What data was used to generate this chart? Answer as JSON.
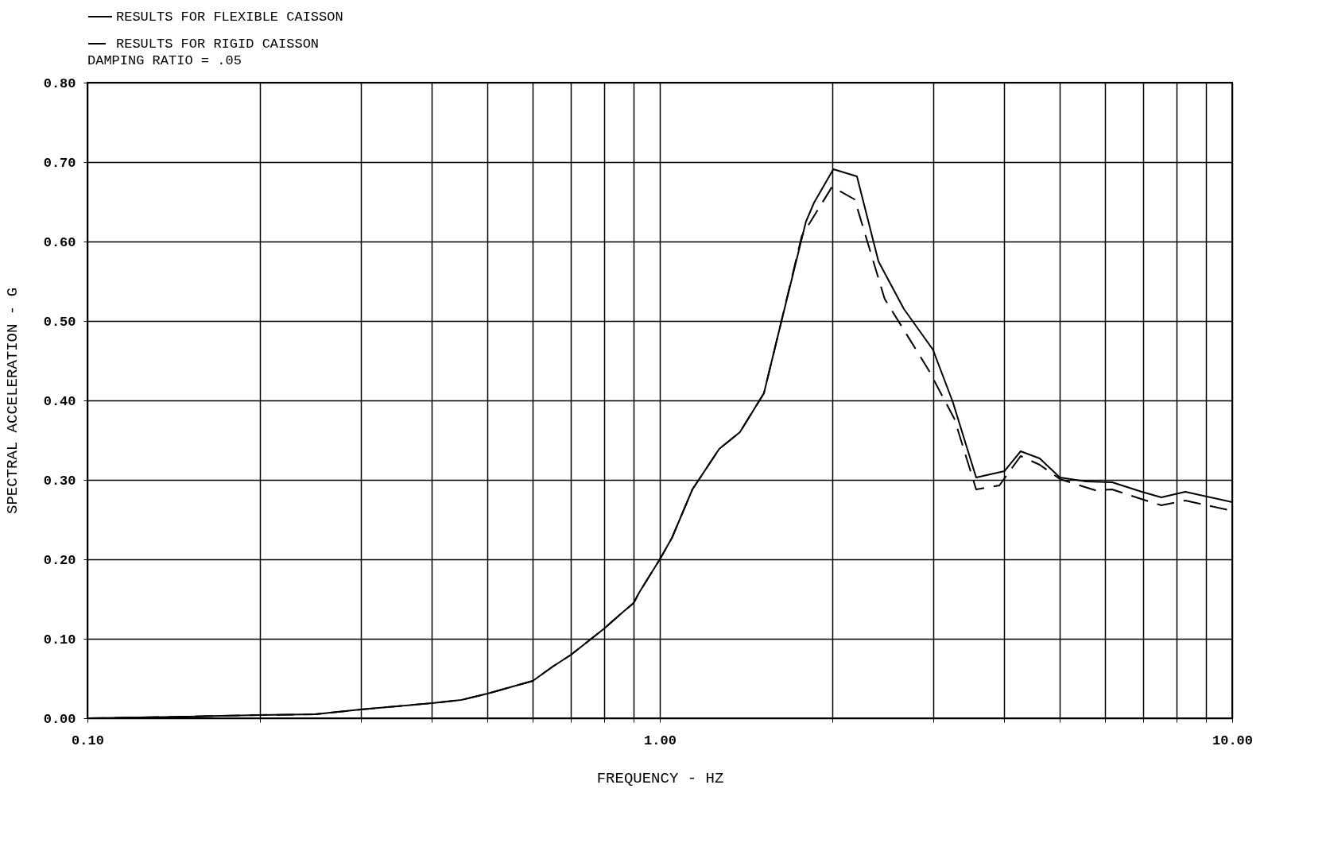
{
  "chart_data": {
    "type": "line",
    "xlabel": "FREQUENCY - HZ",
    "ylabel": "SPECTRAL ACCELERATION - G",
    "legend_title": "DAMPING RATIO = .05",
    "legend": "top",
    "grid": true,
    "log": "x",
    "xlim": [
      0.1,
      10
    ],
    "ylim": [
      0,
      0.8
    ],
    "xticks": [
      {
        "value": 0.1,
        "label": "0.10"
      },
      {
        "value": 0.2,
        "label": null
      },
      {
        "value": 0.3,
        "label": null
      },
      {
        "value": 0.4,
        "label": null
      },
      {
        "value": 0.5,
        "label": null
      },
      {
        "value": 0.6,
        "label": null
      },
      {
        "value": 0.7,
        "label": null
      },
      {
        "value": 0.8,
        "label": null
      },
      {
        "value": 0.9,
        "label": null
      },
      {
        "value": 1,
        "label": "1.00"
      },
      {
        "value": 2,
        "label": null
      },
      {
        "value": 3,
        "label": null
      },
      {
        "value": 4,
        "label": null
      },
      {
        "value": 5,
        "label": null
      },
      {
        "value": 6,
        "label": null
      },
      {
        "value": 7,
        "label": null
      },
      {
        "value": 8,
        "label": null
      },
      {
        "value": 9,
        "label": null
      },
      {
        "value": 10,
        "label": "10.00"
      }
    ],
    "yticks": [
      {
        "value": 0,
        "label": "0.00"
      },
      {
        "value": 0.1,
        "label": "0.10"
      },
      {
        "value": 0.2,
        "label": "0.20"
      },
      {
        "value": 0.3,
        "label": "0.30"
      },
      {
        "value": 0.4,
        "label": "0.40"
      },
      {
        "value": 0.5,
        "label": "0.50"
      },
      {
        "value": 0.6,
        "label": "0.60"
      },
      {
        "value": 0.7,
        "label": "0.70"
      },
      {
        "value": 0.8,
        "label": "0.80"
      }
    ],
    "series": [
      {
        "name": "RESULTS FOR FLEXIBLE CAISSON",
        "color": "#000000",
        "line_style": "solid",
        "x": [
          0.1,
          0.15,
          0.2,
          0.25,
          0.3,
          0.4,
          0.45,
          0.5,
          0.6,
          0.65,
          0.7,
          0.8,
          0.86,
          0.9,
          0.92,
          1.0,
          1.05,
          1.14,
          1.27,
          1.38,
          1.52,
          1.62,
          1.8,
          1.86,
          2.01,
          2.21,
          2.41,
          2.67,
          3.0,
          3.25,
          3.57,
          4.0,
          4.27,
          4.61,
          5.0,
          5.56,
          6.17,
          6.95,
          7.52,
          8.28,
          10
        ],
        "values": [
          0.0,
          0.002,
          0.004,
          0.005,
          0.011,
          0.019,
          0.023,
          0.031,
          0.047,
          0.065,
          0.08,
          0.113,
          0.133,
          0.145,
          0.158,
          0.2,
          0.227,
          0.288,
          0.339,
          0.36,
          0.409,
          0.491,
          0.625,
          0.649,
          0.691,
          0.682,
          0.575,
          0.515,
          0.464,
          0.398,
          0.303,
          0.311,
          0.336,
          0.327,
          0.303,
          0.298,
          0.297,
          0.285,
          0.278,
          0.285,
          0.272
        ]
      },
      {
        "name": "RESULTS FOR RIGID CAISSON",
        "color": "#000000",
        "line_style": "dashed",
        "x": [
          0.1,
          0.15,
          0.2,
          0.25,
          0.3,
          0.4,
          0.45,
          0.5,
          0.6,
          0.65,
          0.7,
          0.8,
          0.86,
          0.9,
          0.92,
          1.0,
          1.05,
          1.14,
          1.27,
          1.38,
          1.52,
          1.62,
          1.77,
          2.0,
          2.19,
          2.47,
          2.95,
          3.27,
          3.57,
          3.92,
          4.27,
          4.61,
          5.0,
          5.76,
          6.17,
          7.07,
          7.52,
          8.28,
          10
        ],
        "values": [
          0.0,
          0.002,
          0.004,
          0.005,
          0.011,
          0.019,
          0.023,
          0.031,
          0.047,
          0.065,
          0.08,
          0.113,
          0.133,
          0.145,
          0.158,
          0.2,
          0.227,
          0.288,
          0.339,
          0.36,
          0.409,
          0.491,
          0.607,
          0.669,
          0.653,
          0.528,
          0.438,
          0.377,
          0.288,
          0.293,
          0.33,
          0.319,
          0.301,
          0.287,
          0.288,
          0.274,
          0.268,
          0.274,
          0.261
        ]
      }
    ]
  }
}
